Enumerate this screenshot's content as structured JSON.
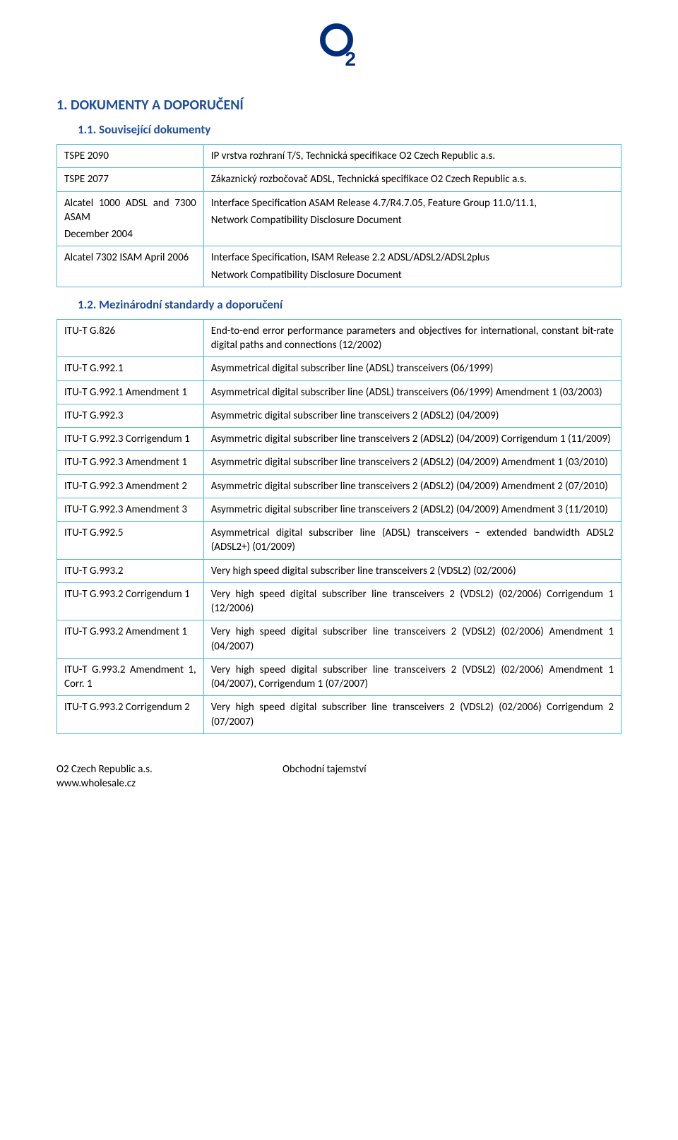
{
  "logo": {
    "stroke_color": "#002e7a",
    "stroke_width": 9
  },
  "heading1": "1.  DOKUMENTY A DOPORUČENÍ",
  "sub1": "1.1.  Související dokumenty",
  "table1": {
    "border_color": "#4fb4e6",
    "rows": [
      {
        "k": "TSPE 2090",
        "v": "IP vrstva rozhraní T/S, Technická specifikace O2 Czech Republic a.s."
      },
      {
        "k": "TSPE 2077",
        "v": "Zákaznický rozbočovač ADSL, Technická specifikace O2 Czech Republic a.s."
      },
      {
        "k": "Alcatel 1000 ADSL and 7300 ASAM\nDecember 2004",
        "v": "Interface Specification ASAM Release 4.7/R4.7.05, Feature Group 11.0/11.1,\nNetwork Compatibility Disclosure Document"
      },
      {
        "k": "Alcatel 7302 ISAM April 2006",
        "v": "Interface Specification, ISAM Release 2.2 ADSL/ADSL2/ADSL2plus\nNetwork Compatibility Disclosure Document"
      }
    ]
  },
  "sub2": "1.2.  Mezinárodní standardy a doporučení",
  "table2": {
    "border_color": "#4fb4e6",
    "rows": [
      {
        "k": "ITU-T G.826",
        "v": "End-to-end error performance parameters and objectives for international, constant bit-rate digital paths and connections (12/2002)"
      },
      {
        "k": "ITU-T G.992.1",
        "v": "Asymmetrical digital subscriber line (ADSL) transceivers (06/1999)"
      },
      {
        "k": "ITU-T G.992.1 Amendment 1",
        "v": "Asymmetrical digital subscriber line (ADSL) transceivers (06/1999) Amendment 1 (03/2003)"
      },
      {
        "k": "ITU-T G.992.3",
        "v": "Asymmetric digital subscriber line transceivers 2 (ADSL2) (04/2009)"
      },
      {
        "k": "ITU-T G.992.3 Corrigendum 1",
        "v": "Asymmetric digital subscriber line transceivers 2 (ADSL2) (04/2009) Corrigendum 1 (11/2009)"
      },
      {
        "k": "ITU-T G.992.3 Amendment 1",
        "v": "Asymmetric digital subscriber line transceivers 2 (ADSL2) (04/2009) Amendment 1 (03/2010)"
      },
      {
        "k": "ITU-T G.992.3 Amendment 2",
        "v": "Asymmetric digital subscriber line transceivers 2 (ADSL2) (04/2009) Amendment 2 (07/2010)"
      },
      {
        "k": "ITU-T G.992.3 Amendment 3",
        "v": "Asymmetric digital subscriber line transceivers 2 (ADSL2) (04/2009) Amendment 3 (11/2010)"
      },
      {
        "k": "ITU-T G.992.5",
        "v": "Asymmetrical digital subscriber line (ADSL) transceivers – extended bandwidth ADSL2 (ADSL2+) (01/2009)"
      },
      {
        "k": "ITU-T G.993.2",
        "v": "Very high speed digital subscriber line transceivers 2 (VDSL2) (02/2006)"
      },
      {
        "k": "ITU-T G.993.2 Corrigendum 1",
        "v": "Very high speed digital subscriber line transceivers 2 (VDSL2) (02/2006) Corrigendum 1 (12/2006)"
      },
      {
        "k": "ITU-T G.993.2 Amendment 1",
        "v": "Very high speed digital subscriber line transceivers 2 (VDSL2) (02/2006) Amendment 1 (04/2007)"
      },
      {
        "k": "ITU-T G.993.2 Amendment 1, Corr. 1",
        "v": "Very high speed digital subscriber line transceivers 2 (VDSL2) (02/2006) Amendment 1 (04/2007), Corrigendum 1 (07/2007)"
      },
      {
        "k": "ITU-T G.993.2 Corrigendum 2",
        "v": "Very high speed digital subscriber line transceivers 2 (VDSL2) (02/2006) Corrigendum 2 (07/2007)"
      }
    ]
  },
  "footer": {
    "left1": "O2 Czech Republic a.s.",
    "left2": "www.wholesale.cz",
    "center": "Obchodní tajemství"
  },
  "colors": {
    "heading": "#1f4e9b",
    "border": "#4fb4e6",
    "text": "#000000",
    "background": "#ffffff"
  },
  "typography": {
    "body_fontsize": 15,
    "h1_fontsize": 20,
    "h2_fontsize": 17
  }
}
